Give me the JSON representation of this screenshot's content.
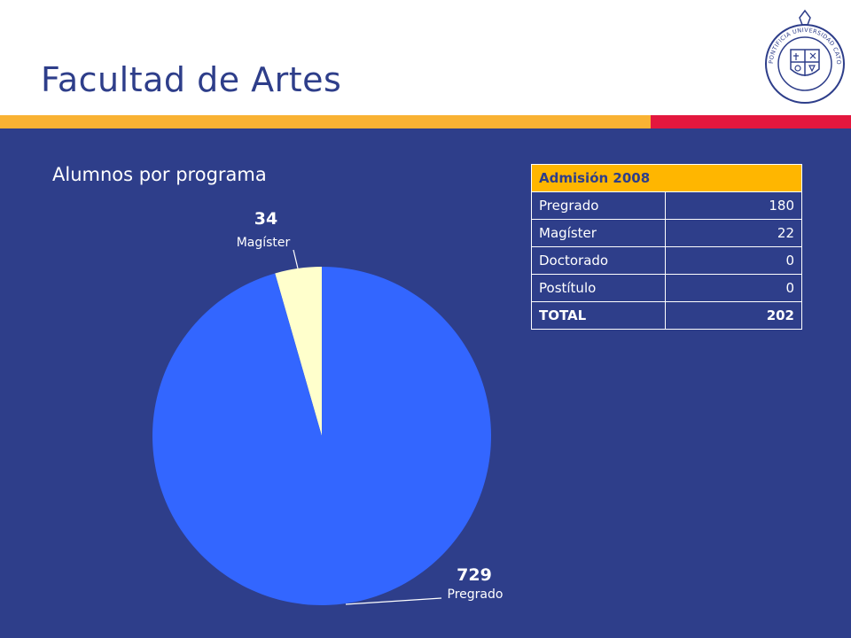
{
  "header": {
    "title": "Facultad de Artes",
    "seal_text": "PONTIFICIA UNIVERSIDAD CATOLICA DE CHILE"
  },
  "colors": {
    "background": "#2e3e8a",
    "stripe_orange": "#f9b233",
    "stripe_red": "#e3173e",
    "pregrado_slice": "#3366ff",
    "magister_slice": "#ffffcc",
    "table_header": "#ffb600"
  },
  "chart_data": {
    "type": "pie",
    "title": "Alumnos por programa",
    "slices": [
      {
        "label": "Magíster",
        "value": 34,
        "color": "#ffffcc"
      },
      {
        "label": "Pregrado",
        "value": 729,
        "color": "#3366ff"
      }
    ]
  },
  "table": {
    "header": "Admisión 2008",
    "rows": [
      {
        "label": "Pregrado",
        "value": "180"
      },
      {
        "label": "Magíster",
        "value": "22"
      },
      {
        "label": "Doctorado",
        "value": "0"
      },
      {
        "label": "Postítulo",
        "value": "0"
      }
    ],
    "total": {
      "label": "TOTAL",
      "value": "202"
    }
  }
}
